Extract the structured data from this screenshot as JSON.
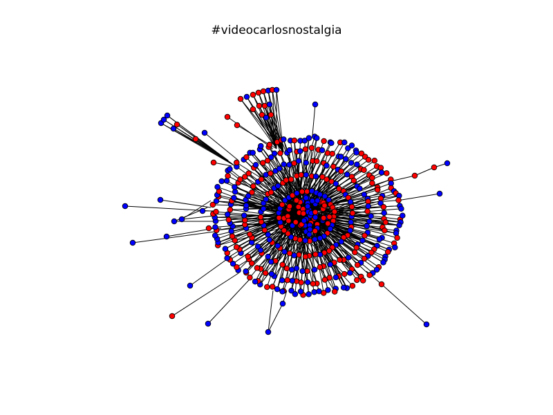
{
  "title": "#videocarlosnostalgia",
  "colors": {
    "node_colors": [
      "#0000ff",
      "#ff0000"
    ],
    "node_outline": "#000000",
    "edge_color": "#000000",
    "background": "#ffffff"
  },
  "chart_data": {
    "type": "network",
    "layout": "spring (radial cluster)",
    "node_color_classes": [
      "blue",
      "red"
    ],
    "axes": "off",
    "legend": "none"
  }
}
